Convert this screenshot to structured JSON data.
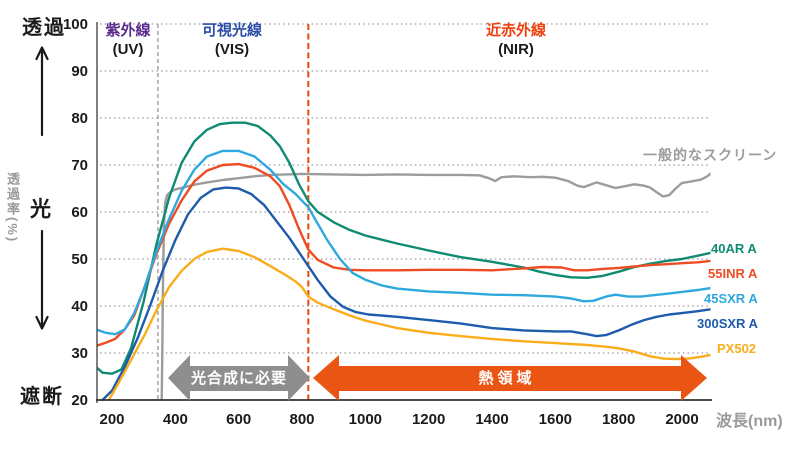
{
  "axis_labels": {
    "transmit": "透過",
    "block": "遮断",
    "light": "光",
    "y_title": "透過率(%)",
    "x_title": "波長(nm)"
  },
  "regions": {
    "uv": {
      "label": "紫外線",
      "abbr": "(UV)",
      "color": "#5b2b8e"
    },
    "vis": {
      "label": "可視光線",
      "abbr": "(VIS)",
      "color": "#2c4da6"
    },
    "nir": {
      "label": "近赤外線",
      "abbr": "(NIR)",
      "color": "#ee3f0d"
    }
  },
  "annotations": {
    "photosynthesis_arrow": {
      "label": "光合成に必要",
      "color": "#8e8e8e",
      "range_nm": [
        380,
        820
      ]
    },
    "heat_arrow": {
      "label": "熱領域",
      "color": "#ea5514",
      "range_nm": [
        830,
        2070
      ]
    }
  },
  "chart_data": {
    "type": "line",
    "title": "",
    "xlabel": "波長(nm)",
    "ylabel": "透過率(%)",
    "xlim": [
      150,
      2090
    ],
    "ylim": [
      20,
      100
    ],
    "xticks": [
      200,
      400,
      600,
      800,
      1000,
      1200,
      1400,
      1600,
      1800,
      2000
    ],
    "yticks": [
      100,
      90,
      80,
      70,
      60,
      50,
      40,
      30,
      20
    ],
    "grid": "horizontal-dotted",
    "legend_position": "right",
    "boundaries": [
      {
        "nm": 345,
        "style": "dashed",
        "color": "#9e9e9e",
        "meaning": "UV/VIS boundary"
      },
      {
        "nm": 820,
        "style": "dashed",
        "color": "#e8470a",
        "meaning": "VIS/NIR boundary"
      }
    ],
    "series": [
      {
        "name": "一般的なスクリーン",
        "color": "#9c9c9c",
        "points": [
          [
            357,
            20
          ],
          [
            359,
            30
          ],
          [
            361,
            45
          ],
          [
            364,
            57
          ],
          [
            368,
            62
          ],
          [
            374,
            63.6
          ],
          [
            385,
            64.3
          ],
          [
            400,
            64.8
          ],
          [
            430,
            65.3
          ],
          [
            460,
            65.8
          ],
          [
            500,
            66.3
          ],
          [
            550,
            66.8
          ],
          [
            600,
            67.2
          ],
          [
            650,
            67.6
          ],
          [
            700,
            67.9
          ],
          [
            750,
            68
          ],
          [
            800,
            68.1
          ],
          [
            900,
            68
          ],
          [
            1000,
            67.9
          ],
          [
            1100,
            68
          ],
          [
            1200,
            67.9
          ],
          [
            1300,
            67.9
          ],
          [
            1360,
            67.8
          ],
          [
            1390,
            67.2
          ],
          [
            1410,
            66.6
          ],
          [
            1430,
            67.4
          ],
          [
            1470,
            67.6
          ],
          [
            1520,
            67.4
          ],
          [
            1560,
            67.5
          ],
          [
            1600,
            67.3
          ],
          [
            1640,
            66.6
          ],
          [
            1670,
            65.6
          ],
          [
            1690,
            65.3
          ],
          [
            1710,
            65.8
          ],
          [
            1730,
            66.3
          ],
          [
            1760,
            65.7
          ],
          [
            1790,
            65.1
          ],
          [
            1820,
            65.5
          ],
          [
            1850,
            65.9
          ],
          [
            1880,
            65.6
          ],
          [
            1900,
            65.2
          ],
          [
            1920,
            64.2
          ],
          [
            1940,
            63.3
          ],
          [
            1960,
            63.6
          ],
          [
            1980,
            65
          ],
          [
            2000,
            66.2
          ],
          [
            2030,
            66.5
          ],
          [
            2060,
            66.9
          ],
          [
            2080,
            67.6
          ],
          [
            2090,
            68.2
          ]
        ]
      },
      {
        "name": "40AR A",
        "color": "#0e8b72",
        "points": [
          [
            150,
            27
          ],
          [
            170,
            25.8
          ],
          [
            200,
            25.6
          ],
          [
            230,
            26.5
          ],
          [
            260,
            31
          ],
          [
            300,
            41
          ],
          [
            340,
            53
          ],
          [
            380,
            63
          ],
          [
            420,
            70.5
          ],
          [
            460,
            75
          ],
          [
            500,
            77.5
          ],
          [
            540,
            78.7
          ],
          [
            580,
            79
          ],
          [
            620,
            79
          ],
          [
            660,
            78.3
          ],
          [
            700,
            76.3
          ],
          [
            730,
            74
          ],
          [
            760,
            70.5
          ],
          [
            790,
            66
          ],
          [
            820,
            62.3
          ],
          [
            850,
            60
          ],
          [
            900,
            57.8
          ],
          [
            950,
            56.2
          ],
          [
            1000,
            55
          ],
          [
            1100,
            53.3
          ],
          [
            1200,
            51.8
          ],
          [
            1300,
            50.4
          ],
          [
            1400,
            49.4
          ],
          [
            1500,
            48.2
          ],
          [
            1550,
            47.3
          ],
          [
            1600,
            46.6
          ],
          [
            1650,
            46.1
          ],
          [
            1700,
            46
          ],
          [
            1750,
            46.4
          ],
          [
            1800,
            47.3
          ],
          [
            1850,
            48.3
          ],
          [
            1900,
            49
          ],
          [
            1950,
            49.6
          ],
          [
            2000,
            50
          ],
          [
            2050,
            50.7
          ],
          [
            2090,
            51.3
          ]
        ]
      },
      {
        "name": "55INR A",
        "color": "#ee4c23",
        "points": [
          [
            150,
            31.5
          ],
          [
            180,
            32.2
          ],
          [
            210,
            33
          ],
          [
            240,
            35
          ],
          [
            270,
            38
          ],
          [
            300,
            43.5
          ],
          [
            340,
            51
          ],
          [
            380,
            57.5
          ],
          [
            420,
            62.5
          ],
          [
            460,
            66.5
          ],
          [
            500,
            68.8
          ],
          [
            550,
            70
          ],
          [
            600,
            70.2
          ],
          [
            650,
            69.4
          ],
          [
            700,
            67.6
          ],
          [
            730,
            65.5
          ],
          [
            760,
            61.5
          ],
          [
            790,
            56.5
          ],
          [
            820,
            52
          ],
          [
            850,
            49.8
          ],
          [
            900,
            48.2
          ],
          [
            950,
            47.7
          ],
          [
            1000,
            47.6
          ],
          [
            1100,
            47.6
          ],
          [
            1200,
            47.7
          ],
          [
            1300,
            47.7
          ],
          [
            1400,
            47.6
          ],
          [
            1450,
            47.8
          ],
          [
            1500,
            48
          ],
          [
            1560,
            48.3
          ],
          [
            1620,
            48.2
          ],
          [
            1660,
            47.6
          ],
          [
            1700,
            47.6
          ],
          [
            1750,
            47.9
          ],
          [
            1800,
            48.1
          ],
          [
            1850,
            48.4
          ],
          [
            1900,
            48.7
          ],
          [
            1950,
            48.9
          ],
          [
            2000,
            49.1
          ],
          [
            2050,
            49.3
          ],
          [
            2090,
            49.6
          ]
        ]
      },
      {
        "name": "45SXR A",
        "color": "#2fa8df",
        "points": [
          [
            150,
            35
          ],
          [
            180,
            34.3
          ],
          [
            210,
            34
          ],
          [
            240,
            35
          ],
          [
            270,
            38.5
          ],
          [
            300,
            43.5
          ],
          [
            340,
            51.5
          ],
          [
            380,
            58.5
          ],
          [
            420,
            64.5
          ],
          [
            460,
            69
          ],
          [
            500,
            71.8
          ],
          [
            550,
            73
          ],
          [
            600,
            73
          ],
          [
            650,
            71.8
          ],
          [
            700,
            69
          ],
          [
            740,
            66
          ],
          [
            780,
            63.8
          ],
          [
            820,
            61
          ],
          [
            850,
            57.5
          ],
          [
            880,
            54
          ],
          [
            920,
            50
          ],
          [
            960,
            47
          ],
          [
            1000,
            45.6
          ],
          [
            1050,
            44.4
          ],
          [
            1100,
            43.7
          ],
          [
            1200,
            43.1
          ],
          [
            1300,
            42.8
          ],
          [
            1400,
            42.4
          ],
          [
            1500,
            42.3
          ],
          [
            1600,
            42
          ],
          [
            1650,
            41.6
          ],
          [
            1690,
            41
          ],
          [
            1720,
            41.1
          ],
          [
            1760,
            42
          ],
          [
            1790,
            42.4
          ],
          [
            1830,
            42
          ],
          [
            1870,
            42
          ],
          [
            1910,
            42.3
          ],
          [
            1950,
            42.6
          ],
          [
            2000,
            43
          ],
          [
            2050,
            43.4
          ],
          [
            2090,
            43.8
          ]
        ]
      },
      {
        "name": "300SXR A",
        "color": "#1e5bab",
        "points": [
          [
            170,
            20
          ],
          [
            200,
            22
          ],
          [
            240,
            27
          ],
          [
            280,
            33
          ],
          [
            320,
            40
          ],
          [
            360,
            47.5
          ],
          [
            400,
            54
          ],
          [
            440,
            59.5
          ],
          [
            480,
            63
          ],
          [
            520,
            64.8
          ],
          [
            560,
            65.2
          ],
          [
            600,
            65
          ],
          [
            640,
            63.8
          ],
          [
            680,
            61.5
          ],
          [
            720,
            58
          ],
          [
            760,
            54.5
          ],
          [
            790,
            51.5
          ],
          [
            820,
            48.5
          ],
          [
            850,
            45.5
          ],
          [
            890,
            42
          ],
          [
            930,
            39.8
          ],
          [
            970,
            38.7
          ],
          [
            1010,
            38.2
          ],
          [
            1100,
            37.7
          ],
          [
            1200,
            37
          ],
          [
            1300,
            36.3
          ],
          [
            1400,
            35.3
          ],
          [
            1500,
            34.8
          ],
          [
            1600,
            34.6
          ],
          [
            1650,
            34.6
          ],
          [
            1700,
            34
          ],
          [
            1730,
            33.6
          ],
          [
            1760,
            33.8
          ],
          [
            1800,
            34.8
          ],
          [
            1840,
            36
          ],
          [
            1880,
            37
          ],
          [
            1920,
            37.7
          ],
          [
            1960,
            38.2
          ],
          [
            2000,
            38.5
          ],
          [
            2050,
            38.9
          ],
          [
            2090,
            39.3
          ]
        ]
      },
      {
        "name": "PX502",
        "color": "#f9ad1a",
        "points": [
          [
            190,
            20
          ],
          [
            220,
            23.5
          ],
          [
            260,
            28.5
          ],
          [
            300,
            33.5
          ],
          [
            340,
            39
          ],
          [
            380,
            44
          ],
          [
            420,
            47.5
          ],
          [
            460,
            50
          ],
          [
            500,
            51.5
          ],
          [
            550,
            52.2
          ],
          [
            600,
            51.7
          ],
          [
            650,
            50.4
          ],
          [
            700,
            48.5
          ],
          [
            750,
            46.5
          ],
          [
            780,
            45.2
          ],
          [
            800,
            44
          ],
          [
            820,
            42
          ],
          [
            850,
            40.7
          ],
          [
            900,
            39.3
          ],
          [
            950,
            38
          ],
          [
            1000,
            36.9
          ],
          [
            1100,
            35.3
          ],
          [
            1200,
            34.3
          ],
          [
            1300,
            33.6
          ],
          [
            1400,
            33
          ],
          [
            1500,
            32.5
          ],
          [
            1600,
            32.1
          ],
          [
            1700,
            31.7
          ],
          [
            1750,
            31.4
          ],
          [
            1800,
            31
          ],
          [
            1850,
            30.3
          ],
          [
            1900,
            29.3
          ],
          [
            1940,
            28.8
          ],
          [
            1980,
            28.7
          ],
          [
            2020,
            28.8
          ],
          [
            2060,
            29.2
          ],
          [
            2090,
            29.6
          ]
        ]
      }
    ]
  }
}
